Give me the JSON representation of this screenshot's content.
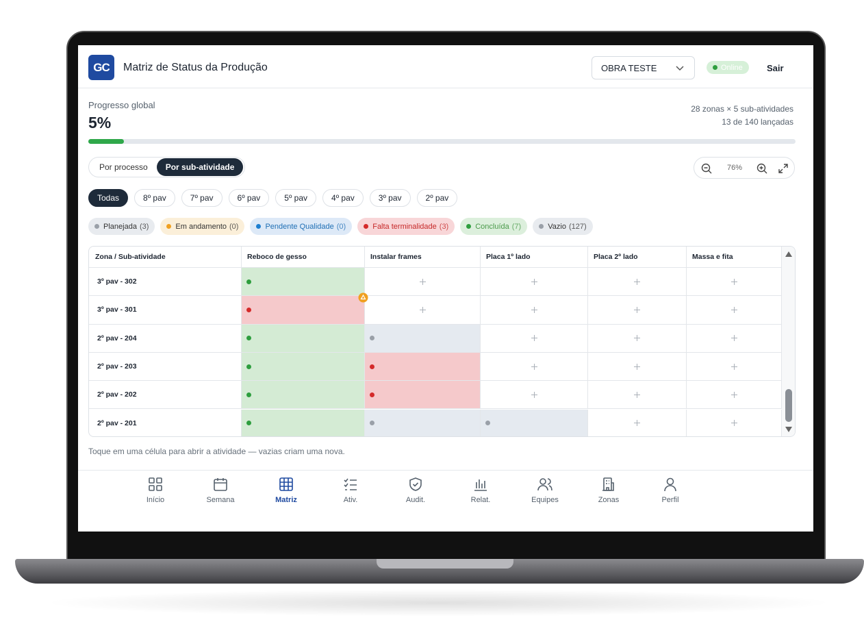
{
  "header": {
    "logo": "GC",
    "title": "Matriz de Status da Produção",
    "project": "OBRA TESTE",
    "status": "Online",
    "logout": "Sair"
  },
  "progress": {
    "label": "Progresso global",
    "value": "5%",
    "summary": [
      "28 zonas × 5 sub-atividades",
      "13 de 140 lançadas"
    ]
  },
  "view_toggle": {
    "options": [
      "Por processo",
      "Por sub-atividade"
    ],
    "active": 1
  },
  "zoom": "76%",
  "floors": {
    "options": [
      "Todas",
      "8º pav",
      "7º pav",
      "6º pav",
      "5º pav",
      "4º pav",
      "3º pav",
      "2º pav"
    ],
    "active": 0
  },
  "legend": [
    {
      "label": "Planejada",
      "count": "(3)",
      "color": "#9aa0a8",
      "background": "#e8ebef",
      "text_color": "#333"
    },
    {
      "label": "Em andamento",
      "count": "(0)",
      "color": "#f0a020",
      "background": "#fbefd9",
      "text_color": "#333"
    },
    {
      "label": "Pendente Qualidade",
      "count": "(0)",
      "color": "#1e7fd0",
      "background": "#dde9f7",
      "text_color": "#1f6fb5"
    },
    {
      "label": "Falta terminalidade",
      "count": "(3)",
      "color": "#d42a2a",
      "background": "#f8d6d8",
      "text_color": "#c62828"
    },
    {
      "label": "Concluída",
      "count": "(7)",
      "color": "#2e9e3e",
      "background": "#dcefdc",
      "text_color": "#4a9a4a"
    },
    {
      "label": "Vazio",
      "count": "(127)",
      "color": "#9aa0a8",
      "background": "#e8ebef",
      "text_color": "#333"
    }
  ],
  "table": {
    "columns": [
      "Zona / Sub-atividade",
      "Reboco de gesso",
      "Instalar frames",
      "Placa 1º lado",
      "Placa 2º lado",
      "Massa e fita"
    ],
    "cell_colors": [
      "#e5eaf0",
      "#fbefd9",
      "#dde9f7",
      "#f5c9cb",
      "#d4ebd4",
      "#ffffff"
    ],
    "rows": [
      {
        "zone": "3º pav - 302",
        "cells": [
          4,
          5,
          5,
          5,
          5
        ]
      },
      {
        "zone": "3º pav - 301",
        "cells": [
          3,
          5,
          5,
          5,
          5
        ]
      },
      {
        "zone": "2º pav - 204",
        "cells": [
          4,
          0,
          5,
          5,
          5
        ]
      },
      {
        "zone": "2º pav - 203",
        "cells": [
          4,
          3,
          5,
          5,
          5
        ]
      },
      {
        "zone": "2º pav - 202",
        "cells": [
          4,
          3,
          5,
          5,
          5
        ]
      },
      {
        "zone": "2º pav - 201",
        "cells": [
          4,
          0,
          0,
          5,
          5
        ]
      }
    ]
  },
  "footnote": "Toque em uma célula para abrir a atividade — vazias criam uma nova.",
  "nav": {
    "items": [
      "Início",
      "Semana",
      "Matriz",
      "Ativ.",
      "Audit.",
      "Relat.",
      "Equipes",
      "Zonas",
      "Perfil"
    ],
    "active": 2
  }
}
